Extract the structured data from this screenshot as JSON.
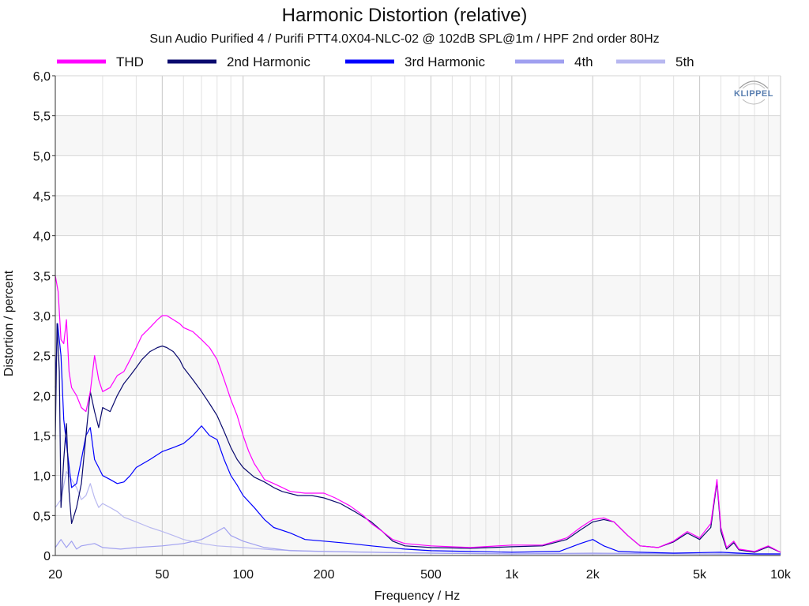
{
  "chart_data": {
    "type": "line",
    "title": "Harmonic Distortion (relative)",
    "subtitle": "Sun Audio Purified 4 / Purifi PTT4.0X04-NLC-02 @ 102dB SPL@1m / HPF 2nd order 80Hz",
    "xlabel": "Frequency / Hz",
    "ylabel": "Distortion / percent",
    "xscale": "log",
    "xlim": [
      20,
      10000
    ],
    "ylim": [
      0,
      6
    ],
    "grid": true,
    "legend_position": "top",
    "watermark": "KLIPPEL",
    "x_ticks": [
      {
        "value": 20,
        "label": "20"
      },
      {
        "value": 50,
        "label": "50"
      },
      {
        "value": 100,
        "label": "100"
      },
      {
        "value": 200,
        "label": "200"
      },
      {
        "value": 500,
        "label": "500"
      },
      {
        "value": 1000,
        "label": "1k"
      },
      {
        "value": 2000,
        "label": "2k"
      },
      {
        "value": 5000,
        "label": "5k"
      },
      {
        "value": 10000,
        "label": "10k"
      }
    ],
    "y_ticks": [
      {
        "value": 0,
        "label": "0"
      },
      {
        "value": 0.5,
        "label": "0,5"
      },
      {
        "value": 1.0,
        "label": "1,0"
      },
      {
        "value": 1.5,
        "label": "1,5"
      },
      {
        "value": 2.0,
        "label": "2,0"
      },
      {
        "value": 2.5,
        "label": "2,5"
      },
      {
        "value": 3.0,
        "label": "3,0"
      },
      {
        "value": 3.5,
        "label": "3,5"
      },
      {
        "value": 4.0,
        "label": "4,0"
      },
      {
        "value": 4.5,
        "label": "4,5"
      },
      {
        "value": 5.0,
        "label": "5,0"
      },
      {
        "value": 5.5,
        "label": "5,5"
      },
      {
        "value": 6.0,
        "label": "6,0"
      }
    ],
    "series": [
      {
        "name": "THD",
        "color": "#ff00ff",
        "points": [
          [
            20,
            3.5
          ],
          [
            20.5,
            3.3
          ],
          [
            21,
            2.7
          ],
          [
            21.5,
            2.65
          ],
          [
            22,
            2.95
          ],
          [
            22.5,
            2.3
          ],
          [
            23,
            2.1
          ],
          [
            24,
            2.0
          ],
          [
            25,
            1.85
          ],
          [
            26,
            1.8
          ],
          [
            27,
            2.05
          ],
          [
            28,
            2.5
          ],
          [
            29,
            2.2
          ],
          [
            30,
            2.05
          ],
          [
            32,
            2.1
          ],
          [
            34,
            2.25
          ],
          [
            36,
            2.3
          ],
          [
            38,
            2.45
          ],
          [
            40,
            2.6
          ],
          [
            42,
            2.75
          ],
          [
            45,
            2.85
          ],
          [
            48,
            2.95
          ],
          [
            50,
            3.0
          ],
          [
            52,
            3.0
          ],
          [
            55,
            2.95
          ],
          [
            58,
            2.9
          ],
          [
            60,
            2.85
          ],
          [
            65,
            2.8
          ],
          [
            70,
            2.7
          ],
          [
            75,
            2.6
          ],
          [
            80,
            2.45
          ],
          [
            85,
            2.2
          ],
          [
            90,
            1.95
          ],
          [
            95,
            1.75
          ],
          [
            100,
            1.5
          ],
          [
            105,
            1.3
          ],
          [
            110,
            1.15
          ],
          [
            115,
            1.05
          ],
          [
            120,
            0.95
          ],
          [
            130,
            0.9
          ],
          [
            140,
            0.85
          ],
          [
            150,
            0.8
          ],
          [
            170,
            0.78
          ],
          [
            200,
            0.78
          ],
          [
            220,
            0.72
          ],
          [
            250,
            0.62
          ],
          [
            280,
            0.5
          ],
          [
            300,
            0.4
          ],
          [
            330,
            0.3
          ],
          [
            360,
            0.2
          ],
          [
            400,
            0.15
          ],
          [
            500,
            0.12
          ],
          [
            700,
            0.1
          ],
          [
            1000,
            0.13
          ],
          [
            1300,
            0.13
          ],
          [
            1600,
            0.22
          ],
          [
            1800,
            0.35
          ],
          [
            2000,
            0.45
          ],
          [
            2200,
            0.47
          ],
          [
            2400,
            0.42
          ],
          [
            2700,
            0.25
          ],
          [
            3000,
            0.12
          ],
          [
            3500,
            0.1
          ],
          [
            4000,
            0.18
          ],
          [
            4500,
            0.3
          ],
          [
            5000,
            0.22
          ],
          [
            5500,
            0.4
          ],
          [
            5800,
            0.95
          ],
          [
            6000,
            0.35
          ],
          [
            6300,
            0.1
          ],
          [
            6700,
            0.18
          ],
          [
            7000,
            0.08
          ],
          [
            8000,
            0.05
          ],
          [
            9000,
            0.12
          ],
          [
            10000,
            0.04
          ]
        ]
      },
      {
        "name": "2nd Harmonic",
        "color": "#0a0a6e",
        "points": [
          [
            20,
            1.45
          ],
          [
            20.3,
            2.9
          ],
          [
            20.7,
            2.3
          ],
          [
            21,
            0.6
          ],
          [
            21.5,
            1.2
          ],
          [
            22,
            1.65
          ],
          [
            22.5,
            0.8
          ],
          [
            23,
            0.4
          ],
          [
            24,
            0.6
          ],
          [
            25,
            0.9
          ],
          [
            26,
            1.5
          ],
          [
            27,
            2.05
          ],
          [
            28,
            1.8
          ],
          [
            29,
            1.6
          ],
          [
            30,
            1.85
          ],
          [
            32,
            1.8
          ],
          [
            34,
            2.0
          ],
          [
            36,
            2.15
          ],
          [
            38,
            2.25
          ],
          [
            40,
            2.35
          ],
          [
            42,
            2.45
          ],
          [
            45,
            2.55
          ],
          [
            48,
            2.6
          ],
          [
            50,
            2.62
          ],
          [
            52,
            2.6
          ],
          [
            55,
            2.55
          ],
          [
            58,
            2.45
          ],
          [
            60,
            2.35
          ],
          [
            65,
            2.2
          ],
          [
            70,
            2.05
          ],
          [
            75,
            1.9
          ],
          [
            80,
            1.75
          ],
          [
            85,
            1.55
          ],
          [
            90,
            1.35
          ],
          [
            95,
            1.2
          ],
          [
            100,
            1.1
          ],
          [
            110,
            0.98
          ],
          [
            120,
            0.92
          ],
          [
            130,
            0.85
          ],
          [
            140,
            0.8
          ],
          [
            160,
            0.75
          ],
          [
            180,
            0.75
          ],
          [
            200,
            0.72
          ],
          [
            230,
            0.65
          ],
          [
            260,
            0.55
          ],
          [
            300,
            0.42
          ],
          [
            330,
            0.3
          ],
          [
            360,
            0.18
          ],
          [
            400,
            0.12
          ],
          [
            500,
            0.1
          ],
          [
            700,
            0.09
          ],
          [
            1000,
            0.11
          ],
          [
            1300,
            0.12
          ],
          [
            1600,
            0.2
          ],
          [
            1800,
            0.32
          ],
          [
            2000,
            0.42
          ],
          [
            2200,
            0.45
          ],
          [
            2400,
            0.42
          ],
          [
            2700,
            0.25
          ],
          [
            3000,
            0.12
          ],
          [
            3500,
            0.1
          ],
          [
            4000,
            0.17
          ],
          [
            4500,
            0.28
          ],
          [
            5000,
            0.2
          ],
          [
            5500,
            0.35
          ],
          [
            5800,
            0.92
          ],
          [
            6000,
            0.3
          ],
          [
            6300,
            0.08
          ],
          [
            6700,
            0.16
          ],
          [
            7000,
            0.07
          ],
          [
            8000,
            0.04
          ],
          [
            9000,
            0.11
          ],
          [
            10000,
            0.04
          ]
        ]
      },
      {
        "name": "3rd Harmonic",
        "color": "#0000ff",
        "points": [
          [
            20,
            2.1
          ],
          [
            20.4,
            2.9
          ],
          [
            21,
            2.5
          ],
          [
            21.5,
            1.7
          ],
          [
            22,
            1.4
          ],
          [
            23,
            0.85
          ],
          [
            24,
            0.9
          ],
          [
            25,
            1.2
          ],
          [
            26,
            1.5
          ],
          [
            27,
            1.6
          ],
          [
            28,
            1.2
          ],
          [
            29,
            1.1
          ],
          [
            30,
            1.0
          ],
          [
            32,
            0.95
          ],
          [
            34,
            0.9
          ],
          [
            36,
            0.92
          ],
          [
            38,
            1.0
          ],
          [
            40,
            1.1
          ],
          [
            45,
            1.2
          ],
          [
            50,
            1.3
          ],
          [
            55,
            1.35
          ],
          [
            60,
            1.4
          ],
          [
            65,
            1.5
          ],
          [
            70,
            1.62
          ],
          [
            75,
            1.5
          ],
          [
            80,
            1.45
          ],
          [
            85,
            1.2
          ],
          [
            90,
            1.0
          ],
          [
            95,
            0.88
          ],
          [
            100,
            0.75
          ],
          [
            110,
            0.6
          ],
          [
            120,
            0.45
          ],
          [
            130,
            0.35
          ],
          [
            150,
            0.28
          ],
          [
            170,
            0.2
          ],
          [
            200,
            0.18
          ],
          [
            250,
            0.15
          ],
          [
            300,
            0.12
          ],
          [
            400,
            0.08
          ],
          [
            500,
            0.06
          ],
          [
            700,
            0.05
          ],
          [
            1000,
            0.04
          ],
          [
            1500,
            0.05
          ],
          [
            1800,
            0.15
          ],
          [
            2000,
            0.2
          ],
          [
            2200,
            0.12
          ],
          [
            2500,
            0.05
          ],
          [
            3000,
            0.04
          ],
          [
            4000,
            0.03
          ],
          [
            6000,
            0.04
          ],
          [
            8000,
            0.02
          ],
          [
            10000,
            0.02
          ]
        ]
      },
      {
        "name": "4th",
        "color": "#a0a0f0",
        "points": [
          [
            20,
            0.1
          ],
          [
            21,
            0.2
          ],
          [
            22,
            0.1
          ],
          [
            23,
            0.18
          ],
          [
            24,
            0.08
          ],
          [
            25,
            0.12
          ],
          [
            28,
            0.15
          ],
          [
            30,
            0.1
          ],
          [
            35,
            0.08
          ],
          [
            40,
            0.1
          ],
          [
            50,
            0.12
          ],
          [
            60,
            0.15
          ],
          [
            70,
            0.2
          ],
          [
            80,
            0.3
          ],
          [
            85,
            0.35
          ],
          [
            90,
            0.25
          ],
          [
            100,
            0.18
          ],
          [
            120,
            0.1
          ],
          [
            150,
            0.06
          ],
          [
            200,
            0.05
          ],
          [
            300,
            0.04
          ],
          [
            500,
            0.03
          ],
          [
            1000,
            0.02
          ],
          [
            2000,
            0.03
          ],
          [
            5000,
            0.02
          ],
          [
            10000,
            0.02
          ]
        ]
      },
      {
        "name": "5th",
        "color": "#b8b8f0",
        "points": [
          [
            20,
            0.6
          ],
          [
            21,
            0.7
          ],
          [
            22,
            1.05
          ],
          [
            23,
            0.95
          ],
          [
            24,
            0.85
          ],
          [
            25,
            0.7
          ],
          [
            26,
            0.75
          ],
          [
            27,
            0.9
          ],
          [
            28,
            0.72
          ],
          [
            29,
            0.6
          ],
          [
            30,
            0.65
          ],
          [
            32,
            0.6
          ],
          [
            34,
            0.55
          ],
          [
            36,
            0.48
          ],
          [
            40,
            0.42
          ],
          [
            45,
            0.35
          ],
          [
            50,
            0.3
          ],
          [
            55,
            0.25
          ],
          [
            60,
            0.2
          ],
          [
            70,
            0.15
          ],
          [
            80,
            0.12
          ],
          [
            100,
            0.1
          ],
          [
            130,
            0.07
          ],
          [
            200,
            0.05
          ],
          [
            300,
            0.04
          ],
          [
            500,
            0.03
          ],
          [
            1000,
            0.02
          ],
          [
            2000,
            0.02
          ],
          [
            5000,
            0.02
          ],
          [
            10000,
            0.01
          ]
        ]
      }
    ]
  }
}
